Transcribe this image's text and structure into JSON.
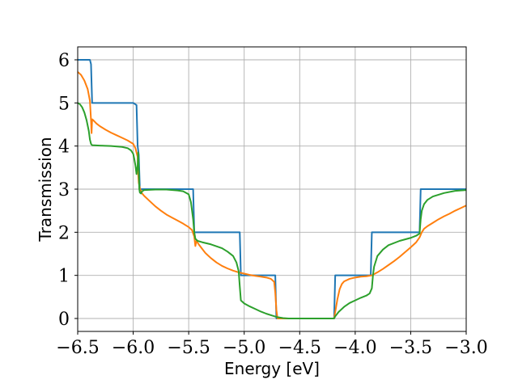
{
  "chart_data": {
    "type": "line",
    "title": "",
    "xlabel": "Energy [eV]",
    "ylabel": "Transmission",
    "xlim": [
      -6.5,
      -3.0
    ],
    "ylim": [
      -0.3,
      6.3
    ],
    "grid": true,
    "legend": "none",
    "x_ticks": [
      -6.5,
      -6.0,
      -5.5,
      -5.0,
      -4.5,
      -4.0,
      -3.5,
      -3.0
    ],
    "x_tick_labels": [
      "−6.5",
      "−6.0",
      "−5.5",
      "−5.0",
      "−4.5",
      "−4.0",
      "−3.5",
      "−3.0"
    ],
    "y_ticks": [
      0,
      1,
      2,
      3,
      4,
      5,
      6
    ],
    "y_tick_labels": [
      "0",
      "1",
      "2",
      "3",
      "4",
      "5",
      "6"
    ],
    "series": [
      {
        "color": "#1f77b4",
        "points": [
          [
            -6.5,
            6.0
          ],
          [
            -6.39,
            6.0
          ],
          [
            -6.38,
            5.9
          ],
          [
            -6.37,
            5.0
          ],
          [
            -6.0,
            5.0
          ],
          [
            -5.97,
            4.95
          ],
          [
            -5.96,
            4.0
          ],
          [
            -5.95,
            3.8
          ],
          [
            -5.94,
            3.0
          ],
          [
            -5.46,
            3.0
          ],
          [
            -5.45,
            2.0
          ],
          [
            -5.04,
            2.0
          ],
          [
            -5.03,
            1.0
          ],
          [
            -4.72,
            1.0
          ],
          [
            -4.715,
            0.5
          ],
          [
            -4.71,
            0.0
          ],
          [
            -4.19,
            0.0
          ],
          [
            -4.18,
            1.0
          ],
          [
            -3.86,
            1.0
          ],
          [
            -3.85,
            2.0
          ],
          [
            -3.42,
            2.0
          ],
          [
            -3.41,
            3.0
          ],
          [
            -3.0,
            3.0
          ]
        ]
      },
      {
        "color": "#ff7f0e",
        "points": [
          [
            -6.5,
            5.72
          ],
          [
            -6.47,
            5.65
          ],
          [
            -6.44,
            5.52
          ],
          [
            -6.41,
            5.32
          ],
          [
            -6.39,
            5.05
          ],
          [
            -6.38,
            4.6
          ],
          [
            -6.375,
            4.3
          ],
          [
            -6.37,
            4.62
          ],
          [
            -6.36,
            4.6
          ],
          [
            -6.33,
            4.52
          ],
          [
            -6.3,
            4.46
          ],
          [
            -6.25,
            4.38
          ],
          [
            -6.2,
            4.31
          ],
          [
            -6.15,
            4.25
          ],
          [
            -6.1,
            4.19
          ],
          [
            -6.05,
            4.13
          ],
          [
            -6.0,
            4.05
          ],
          [
            -5.98,
            3.95
          ],
          [
            -5.96,
            3.75
          ],
          [
            -5.955,
            3.35
          ],
          [
            -5.95,
            3.15
          ],
          [
            -5.94,
            3.02
          ],
          [
            -5.92,
            2.9
          ],
          [
            -5.9,
            2.84
          ],
          [
            -5.85,
            2.72
          ],
          [
            -5.8,
            2.6
          ],
          [
            -5.75,
            2.5
          ],
          [
            -5.7,
            2.41
          ],
          [
            -5.65,
            2.34
          ],
          [
            -5.6,
            2.27
          ],
          [
            -5.55,
            2.2
          ],
          [
            -5.5,
            2.12
          ],
          [
            -5.47,
            2.05
          ],
          [
            -5.45,
            1.9
          ],
          [
            -5.44,
            1.68
          ],
          [
            -5.43,
            1.8
          ],
          [
            -5.41,
            1.72
          ],
          [
            -5.38,
            1.62
          ],
          [
            -5.35,
            1.52
          ],
          [
            -5.3,
            1.4
          ],
          [
            -5.25,
            1.3
          ],
          [
            -5.2,
            1.22
          ],
          [
            -5.15,
            1.16
          ],
          [
            -5.1,
            1.11
          ],
          [
            -5.05,
            1.07
          ],
          [
            -5.0,
            1.04
          ],
          [
            -4.95,
            1.01
          ],
          [
            -4.9,
            0.99
          ],
          [
            -4.85,
            0.97
          ],
          [
            -4.8,
            0.95
          ],
          [
            -4.76,
            0.92
          ],
          [
            -4.73,
            0.85
          ],
          [
            -4.72,
            0.6
          ],
          [
            -4.71,
            0.2
          ],
          [
            -4.7,
            0.0
          ],
          [
            -4.19,
            0.0
          ],
          [
            -4.18,
            0.15
          ],
          [
            -4.16,
            0.45
          ],
          [
            -4.14,
            0.68
          ],
          [
            -4.12,
            0.8
          ],
          [
            -4.1,
            0.86
          ],
          [
            -4.05,
            0.92
          ],
          [
            -4.0,
            0.95
          ],
          [
            -3.95,
            0.97
          ],
          [
            -3.9,
            0.98
          ],
          [
            -3.85,
            1.0
          ],
          [
            -3.8,
            1.07
          ],
          [
            -3.75,
            1.15
          ],
          [
            -3.7,
            1.24
          ],
          [
            -3.65,
            1.33
          ],
          [
            -3.6,
            1.43
          ],
          [
            -3.55,
            1.54
          ],
          [
            -3.5,
            1.65
          ],
          [
            -3.45,
            1.77
          ],
          [
            -3.42,
            1.88
          ],
          [
            -3.4,
            2.0
          ],
          [
            -3.38,
            2.08
          ],
          [
            -3.35,
            2.14
          ],
          [
            -3.3,
            2.22
          ],
          [
            -3.25,
            2.3
          ],
          [
            -3.2,
            2.37
          ],
          [
            -3.15,
            2.43
          ],
          [
            -3.1,
            2.5
          ],
          [
            -3.05,
            2.56
          ],
          [
            -3.0,
            2.62
          ]
        ]
      },
      {
        "color": "#2ca02c",
        "points": [
          [
            -6.5,
            5.0
          ],
          [
            -6.48,
            4.97
          ],
          [
            -6.46,
            4.9
          ],
          [
            -6.44,
            4.78
          ],
          [
            -6.42,
            4.6
          ],
          [
            -6.4,
            4.35
          ],
          [
            -6.39,
            4.15
          ],
          [
            -6.38,
            4.05
          ],
          [
            -6.37,
            4.02
          ],
          [
            -6.3,
            4.01
          ],
          [
            -6.2,
            4.0
          ],
          [
            -6.1,
            3.98
          ],
          [
            -6.05,
            3.95
          ],
          [
            -6.02,
            3.9
          ],
          [
            -6.0,
            3.82
          ],
          [
            -5.99,
            3.7
          ],
          [
            -5.98,
            3.55
          ],
          [
            -5.97,
            3.35
          ],
          [
            -5.96,
            3.55
          ],
          [
            -5.955,
            3.85
          ],
          [
            -5.95,
            3.5
          ],
          [
            -5.945,
            3.0
          ],
          [
            -5.94,
            2.92
          ],
          [
            -5.93,
            2.9
          ],
          [
            -5.92,
            2.95
          ],
          [
            -5.9,
            2.98
          ],
          [
            -5.8,
            2.99
          ],
          [
            -5.7,
            2.99
          ],
          [
            -5.6,
            2.97
          ],
          [
            -5.55,
            2.95
          ],
          [
            -5.5,
            2.88
          ],
          [
            -5.48,
            2.7
          ],
          [
            -5.46,
            2.3
          ],
          [
            -5.45,
            2.0
          ],
          [
            -5.44,
            1.85
          ],
          [
            -5.42,
            1.8
          ],
          [
            -5.38,
            1.77
          ],
          [
            -5.3,
            1.72
          ],
          [
            -5.2,
            1.63
          ],
          [
            -5.15,
            1.55
          ],
          [
            -5.1,
            1.45
          ],
          [
            -5.07,
            1.3
          ],
          [
            -5.05,
            1.1
          ],
          [
            -5.04,
            0.75
          ],
          [
            -5.03,
            0.42
          ],
          [
            -5.0,
            0.35
          ],
          [
            -4.95,
            0.28
          ],
          [
            -4.9,
            0.22
          ],
          [
            -4.85,
            0.16
          ],
          [
            -4.8,
            0.11
          ],
          [
            -4.75,
            0.07
          ],
          [
            -4.7,
            0.03
          ],
          [
            -4.65,
            0.01
          ],
          [
            -4.6,
            0.0
          ],
          [
            -4.19,
            0.0
          ],
          [
            -4.18,
            0.05
          ],
          [
            -4.15,
            0.15
          ],
          [
            -4.1,
            0.27
          ],
          [
            -4.05,
            0.36
          ],
          [
            -4.0,
            0.42
          ],
          [
            -3.95,
            0.48
          ],
          [
            -3.9,
            0.53
          ],
          [
            -3.87,
            0.58
          ],
          [
            -3.85,
            0.7
          ],
          [
            -3.84,
            1.0
          ],
          [
            -3.83,
            1.2
          ],
          [
            -3.8,
            1.45
          ],
          [
            -3.75,
            1.6
          ],
          [
            -3.7,
            1.7
          ],
          [
            -3.6,
            1.8
          ],
          [
            -3.5,
            1.87
          ],
          [
            -3.45,
            1.92
          ],
          [
            -3.42,
            1.97
          ],
          [
            -3.41,
            2.3
          ],
          [
            -3.4,
            2.5
          ],
          [
            -3.38,
            2.65
          ],
          [
            -3.35,
            2.75
          ],
          [
            -3.3,
            2.83
          ],
          [
            -3.2,
            2.91
          ],
          [
            -3.1,
            2.96
          ],
          [
            -3.0,
            2.98
          ]
        ]
      }
    ]
  }
}
